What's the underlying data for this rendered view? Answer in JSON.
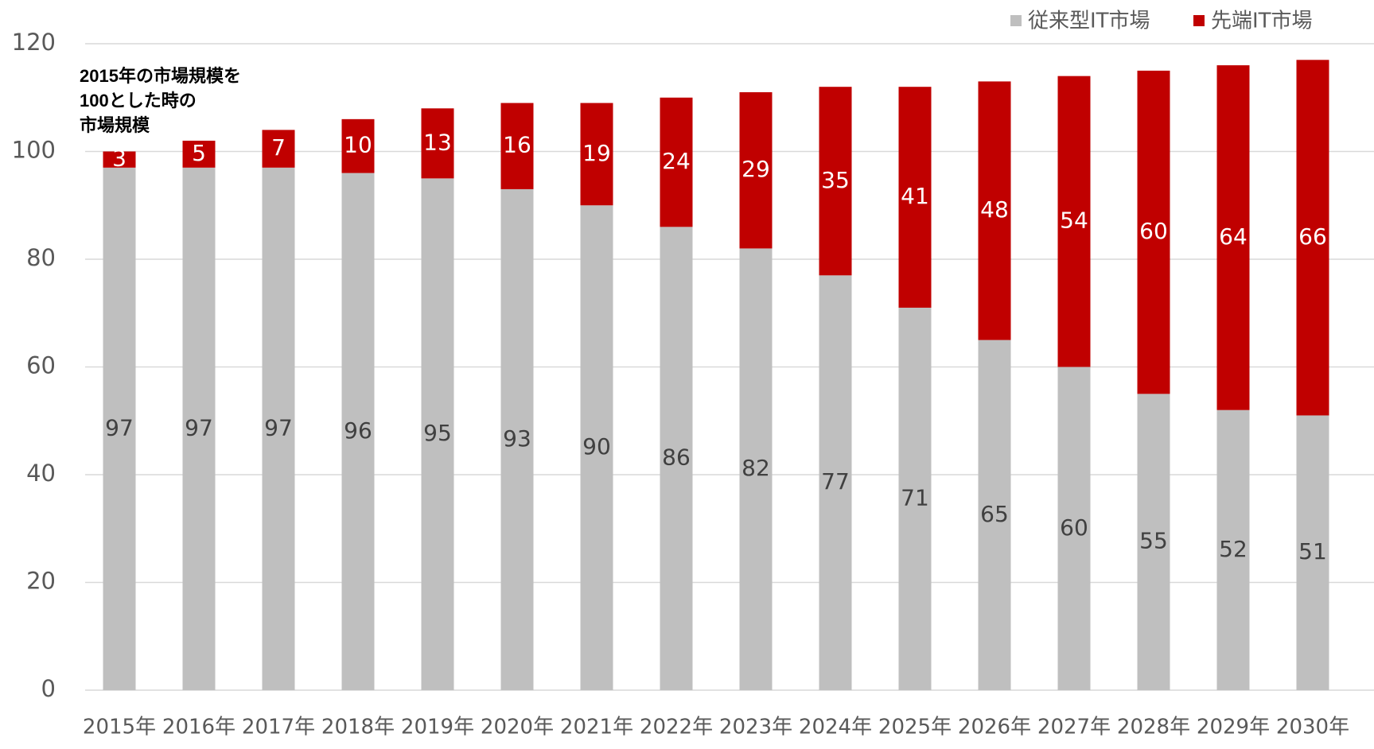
{
  "chart_data": {
    "type": "stacked_bar",
    "categories": [
      "2015年",
      "2016年",
      "2017年",
      "2018年",
      "2019年",
      "2020年",
      "2021年",
      "2022年",
      "2023年",
      "2024年",
      "2025年",
      "2026年",
      "2027年",
      "2028年",
      "2029年",
      "2030年"
    ],
    "series": [
      {
        "name": "従来型IT市場",
        "color": "#bfbfbf",
        "values": [
          97,
          97,
          97,
          96,
          95,
          93,
          90,
          86,
          82,
          77,
          71,
          65,
          60,
          55,
          52,
          51
        ]
      },
      {
        "name": "先端IT市場",
        "color": "#c00000",
        "values": [
          3,
          5,
          7,
          10,
          13,
          16,
          19,
          24,
          29,
          35,
          41,
          48,
          54,
          60,
          64,
          66
        ]
      }
    ],
    "annotation": [
      "2015年の市場規模を",
      "100とした時の",
      "市場規模"
    ],
    "ylim": [
      0,
      120
    ],
    "yticks": [
      0,
      20,
      40,
      60,
      80,
      100,
      120
    ],
    "grid": true,
    "legend": "top-right"
  }
}
